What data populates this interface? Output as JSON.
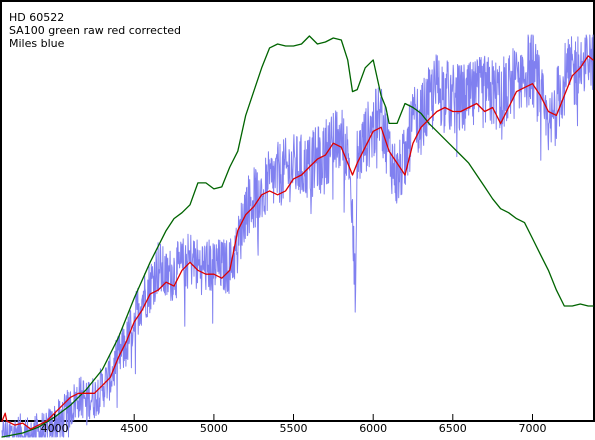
{
  "chart_data": {
    "type": "line",
    "legend_text": [
      "HD 60522",
      "SA100  green raw   red corrected",
      "Miles   blue"
    ],
    "legend_position": "top-left",
    "grid": false,
    "xlim": [
      3670,
      7380
    ],
    "ylim": [
      0,
      1
    ],
    "xticks": [
      4000,
      4500,
      5000,
      5500,
      6000,
      6500,
      7000
    ],
    "colors": {
      "green": "#006400",
      "red": "#dd0000",
      "blue": "#8080f0"
    },
    "series": [
      {
        "color_key": "green",
        "x": [
          3670,
          3800,
          3900,
          4000,
          4100,
          4200,
          4300,
          4400,
          4500,
          4600,
          4700,
          4750,
          4800,
          4850,
          4900,
          4950,
          5000,
          5050,
          5100,
          5150,
          5200,
          5250,
          5300,
          5350,
          5400,
          5450,
          5500,
          5550,
          5600,
          5650,
          5700,
          5750,
          5800,
          5840,
          5870,
          5900,
          5950,
          6000,
          6050,
          6080,
          6100,
          6150,
          6200,
          6250,
          6300,
          6350,
          6400,
          6450,
          6500,
          6550,
          6600,
          6650,
          6700,
          6750,
          6800,
          6850,
          6900,
          6950,
          7000,
          7050,
          7100,
          7150,
          7200,
          7250,
          7300,
          7350,
          7380
        ],
        "y": [
          0.0,
          0.01,
          0.025,
          0.05,
          0.08,
          0.12,
          0.17,
          0.25,
          0.35,
          0.44,
          0.52,
          0.55,
          0.565,
          0.585,
          0.64,
          0.64,
          0.625,
          0.63,
          0.68,
          0.72,
          0.81,
          0.87,
          0.93,
          0.98,
          0.99,
          0.985,
          0.985,
          0.99,
          1.01,
          0.99,
          0.995,
          1.005,
          1.0,
          0.95,
          0.87,
          0.875,
          0.93,
          0.95,
          0.86,
          0.83,
          0.79,
          0.79,
          0.84,
          0.83,
          0.815,
          0.79,
          0.77,
          0.75,
          0.73,
          0.71,
          0.69,
          0.66,
          0.63,
          0.6,
          0.575,
          0.565,
          0.55,
          0.54,
          0.5,
          0.46,
          0.42,
          0.37,
          0.33,
          0.33,
          0.335,
          0.33,
          0.33
        ]
      },
      {
        "color_key": "red",
        "x": [
          3670,
          3690,
          3700,
          3750,
          3800,
          3850,
          3900,
          3950,
          4000,
          4050,
          4100,
          4150,
          4200,
          4250,
          4300,
          4350,
          4400,
          4450,
          4500,
          4550,
          4600,
          4650,
          4700,
          4750,
          4800,
          4850,
          4900,
          4950,
          5000,
          5050,
          5100,
          5150,
          5200,
          5250,
          5300,
          5350,
          5400,
          5450,
          5500,
          5550,
          5600,
          5650,
          5700,
          5750,
          5800,
          5850,
          5870,
          5900,
          5950,
          6000,
          6050,
          6100,
          6150,
          6200,
          6250,
          6300,
          6350,
          6400,
          6450,
          6500,
          6550,
          6600,
          6650,
          6700,
          6750,
          6800,
          6850,
          6900,
          6950,
          7000,
          7050,
          7100,
          7150,
          7200,
          7250,
          7300,
          7350,
          7380
        ],
        "y": [
          0.04,
          0.06,
          0.04,
          0.03,
          0.035,
          0.02,
          0.03,
          0.04,
          0.06,
          0.08,
          0.1,
          0.11,
          0.11,
          0.11,
          0.13,
          0.15,
          0.2,
          0.24,
          0.29,
          0.32,
          0.36,
          0.37,
          0.39,
          0.38,
          0.42,
          0.44,
          0.42,
          0.41,
          0.41,
          0.4,
          0.42,
          0.52,
          0.56,
          0.58,
          0.61,
          0.62,
          0.61,
          0.62,
          0.65,
          0.66,
          0.68,
          0.7,
          0.71,
          0.74,
          0.73,
          0.68,
          0.66,
          0.69,
          0.73,
          0.77,
          0.78,
          0.72,
          0.69,
          0.66,
          0.74,
          0.78,
          0.8,
          0.82,
          0.83,
          0.82,
          0.82,
          0.83,
          0.84,
          0.82,
          0.83,
          0.79,
          0.83,
          0.87,
          0.88,
          0.89,
          0.86,
          0.82,
          0.81,
          0.86,
          0.91,
          0.93,
          0.96,
          0.95
        ]
      },
      {
        "color_key": "blue",
        "x": [
          3670,
          3750,
          3850,
          3950,
          4050,
          4150,
          4250,
          4350,
          4400,
          4450,
          4500,
          4550,
          4600,
          4650,
          4700,
          4800,
          4860,
          4900,
          5000,
          5100,
          5150,
          5200,
          5300,
          5400,
          5500,
          5600,
          5700,
          5800,
          5850,
          5890,
          5900,
          5950,
          6000,
          6050,
          6100,
          6150,
          6200,
          6250,
          6300,
          6350,
          6400,
          6500,
          6600,
          6700,
          6800,
          6900,
          6950,
          7000,
          7050,
          7100,
          7150,
          7200,
          7300,
          7380
        ],
        "y": [
          0.0,
          0.01,
          0.005,
          0.02,
          0.05,
          0.1,
          0.1,
          0.15,
          0.2,
          0.23,
          0.3,
          0.35,
          0.38,
          0.43,
          0.4,
          0.43,
          0.45,
          0.43,
          0.43,
          0.43,
          0.48,
          0.58,
          0.62,
          0.66,
          0.68,
          0.68,
          0.72,
          0.75,
          0.7,
          0.36,
          0.7,
          0.75,
          0.78,
          0.81,
          0.72,
          0.65,
          0.7,
          0.79,
          0.8,
          0.84,
          0.88,
          0.85,
          0.85,
          0.87,
          0.86,
          0.9,
          0.92,
          0.93,
          0.86,
          0.76,
          0.84,
          0.9,
          0.93,
          0.97
        ]
      }
    ]
  }
}
